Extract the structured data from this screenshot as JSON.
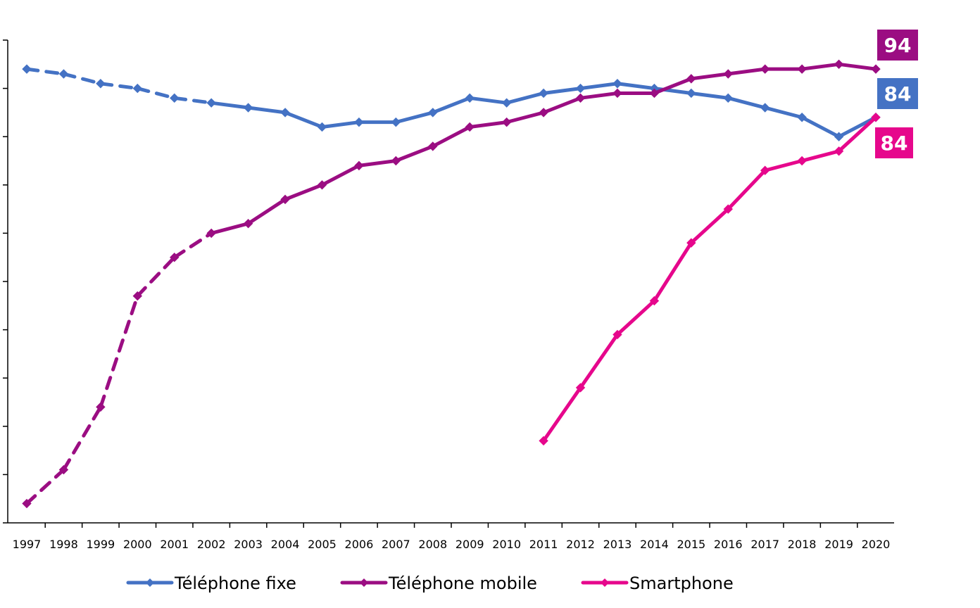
{
  "chart_data": {
    "type": "line",
    "title": "",
    "xlabel": "",
    "ylabel": "",
    "ylim": [
      0,
      100
    ],
    "x": [
      "1997",
      "1998",
      "1999",
      "2000",
      "2001",
      "2002",
      "2003",
      "2004",
      "2005",
      "2006",
      "2007",
      "2008",
      "2009",
      "2010",
      "2011",
      "2012",
      "2013",
      "2014",
      "2015",
      "2016",
      "2017",
      "2018",
      "2019",
      "2020"
    ],
    "legend_position": "bottom",
    "grid": false,
    "series": [
      {
        "name": "Téléphone fixe",
        "color": "#4472C4",
        "dashed_until": "2002",
        "values": [
          94,
          93,
          91,
          90,
          88,
          87,
          86,
          85,
          82,
          83,
          83,
          85,
          88,
          87,
          89,
          90,
          91,
          90,
          89,
          88,
          86,
          84,
          80,
          84
        ]
      },
      {
        "name": "Téléphone mobile",
        "color": "#9B0D82",
        "dashed_until": "2002",
        "values": [
          4,
          11,
          24,
          47,
          55,
          60,
          62,
          67,
          70,
          74,
          75,
          78,
          82,
          83,
          85,
          88,
          89,
          89,
          92,
          93,
          94,
          94,
          95,
          94
        ]
      },
      {
        "name": "Smartphone",
        "color": "#E6078C",
        "dashed_until": null,
        "values": [
          null,
          null,
          null,
          null,
          null,
          null,
          null,
          null,
          null,
          null,
          null,
          null,
          null,
          null,
          17,
          28,
          39,
          46,
          58,
          65,
          73,
          75,
          77,
          84
        ]
      }
    ],
    "end_labels": [
      {
        "text": "94",
        "color": "#9B0D82"
      },
      {
        "text": "84",
        "color": "#4472C4"
      },
      {
        "text": "84",
        "color": "#E6078C"
      }
    ]
  }
}
